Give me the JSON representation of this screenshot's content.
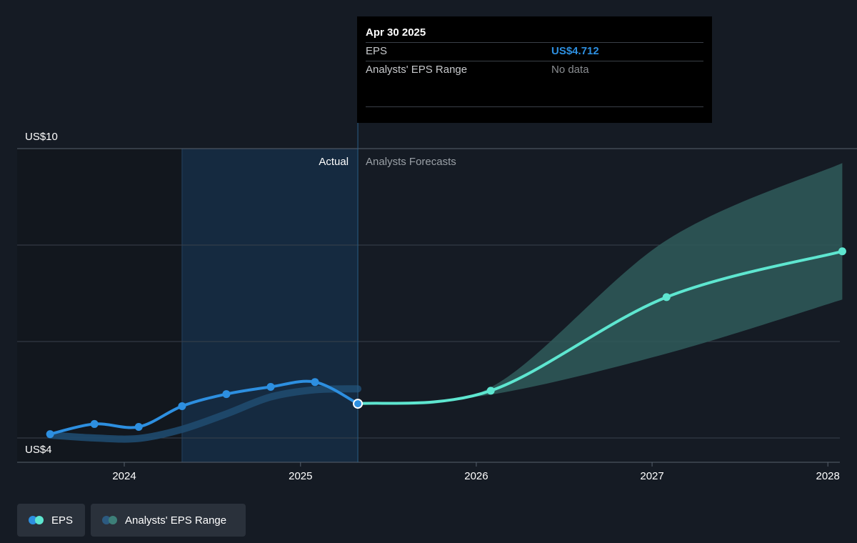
{
  "tooltip": {
    "date": "Apr 30 2025",
    "rows": [
      {
        "label": "EPS",
        "value": "US$4.712"
      },
      {
        "label": "Analysts' EPS Range",
        "value": "No data"
      }
    ]
  },
  "regions": {
    "actual_label": "Actual",
    "forecast_label": "Analysts Forecasts"
  },
  "legend": {
    "eps_label": "EPS",
    "range_label": "Analysts' EPS Range"
  },
  "colors": {
    "background": "#151b24",
    "actual_line": "#2d8fe0",
    "forecast_line": "#5ee6d0",
    "range_fill": "#2f5a5a",
    "grid": "#39414c"
  },
  "chart_data": {
    "type": "line",
    "y_tick_labels": [
      "US$10",
      "US$4"
    ],
    "ylim": [
      4,
      10
    ],
    "x_tick_labels": [
      "2024",
      "2025",
      "2026",
      "2027",
      "2028"
    ],
    "x_tick_values": [
      "2024-01-01",
      "2025-01-01",
      "2026-01-01",
      "2027-01-01",
      "2028-01-01"
    ],
    "grid": true,
    "series": [
      {
        "name": "EPS",
        "role": "actual",
        "points": [
          {
            "x": "2023-07-31",
            "y": 4.08
          },
          {
            "x": "2023-10-31",
            "y": 4.29
          },
          {
            "x": "2024-01-31",
            "y": 4.23
          },
          {
            "x": "2024-04-30",
            "y": 4.66
          },
          {
            "x": "2024-07-31",
            "y": 4.91
          },
          {
            "x": "2024-10-31",
            "y": 5.06
          },
          {
            "x": "2025-01-31",
            "y": 5.16
          },
          {
            "x": "2025-04-30",
            "y": 4.71
          }
        ]
      },
      {
        "name": "EPS",
        "role": "forecast",
        "points": [
          {
            "x": "2025-04-30",
            "y": 4.71
          },
          {
            "x": "2026-01-31",
            "y": 4.98
          },
          {
            "x": "2027-01-31",
            "y": 6.92
          },
          {
            "x": "2028-01-31",
            "y": 7.87
          }
        ]
      }
    ],
    "range": {
      "name": "Analysts' EPS Range",
      "historical_band": [
        {
          "x": "2023-07-31",
          "y": 4.06
        },
        {
          "x": "2023-10-31",
          "y": 4.0
        },
        {
          "x": "2024-01-31",
          "y": 3.99
        },
        {
          "x": "2024-04-30",
          "y": 4.18
        },
        {
          "x": "2024-07-31",
          "y": 4.5
        },
        {
          "x": "2024-10-31",
          "y": 4.85
        },
        {
          "x": "2025-01-31",
          "y": 5.0
        },
        {
          "x": "2025-04-30",
          "y": 5.02
        }
      ],
      "forecast_high": [
        {
          "x": "2025-04-30",
          "y": 4.71
        },
        {
          "x": "2026-01-31",
          "y": 5.05
        },
        {
          "x": "2027-01-31",
          "y": 8.1
        },
        {
          "x": "2028-01-31",
          "y": 9.7
        }
      ],
      "forecast_low": [
        {
          "x": "2025-04-30",
          "y": 4.71
        },
        {
          "x": "2026-01-31",
          "y": 4.9
        },
        {
          "x": "2027-01-31",
          "y": 5.75
        },
        {
          "x": "2028-01-31",
          "y": 6.87
        }
      ]
    }
  }
}
